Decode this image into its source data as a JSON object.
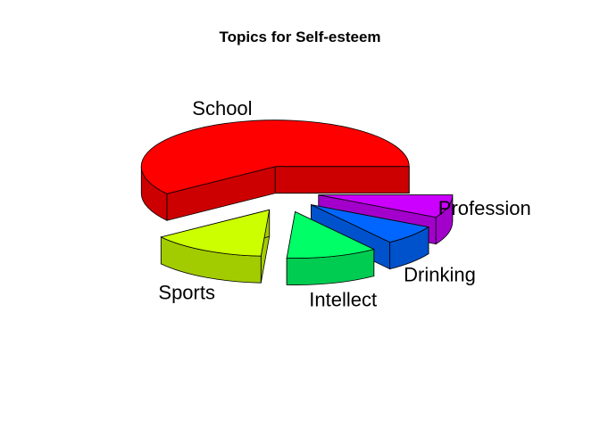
{
  "chart_data": {
    "type": "pie",
    "title": "Topics for Self-esteem",
    "labels": [
      "School",
      "Sports",
      "Intellect",
      "Drinking",
      "Profession"
    ],
    "values": [
      60,
      14,
      11,
      7,
      8
    ],
    "colors": [
      "#ff0000",
      "#ccff00",
      "#00ff66",
      "#0066ff",
      "#cc00ff"
    ],
    "explode": true,
    "style": "3d"
  }
}
